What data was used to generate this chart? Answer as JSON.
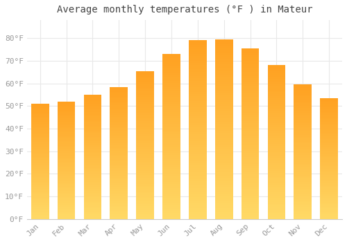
{
  "title": "Average monthly temperatures (°F ) in Mateur",
  "months": [
    "Jan",
    "Feb",
    "Mar",
    "Apr",
    "May",
    "Jun",
    "Jul",
    "Aug",
    "Sep",
    "Oct",
    "Nov",
    "Dec"
  ],
  "values": [
    51,
    52,
    55,
    58.5,
    65.5,
    73,
    79,
    79.5,
    75.5,
    68,
    59.5,
    53.5
  ],
  "ylim": [
    0,
    88
  ],
  "yticks": [
    0,
    10,
    20,
    30,
    40,
    50,
    60,
    70,
    80
  ],
  "ytick_labels": [
    "0°F",
    "10°F",
    "20°F",
    "30°F",
    "40°F",
    "50°F",
    "60°F",
    "70°F",
    "80°F"
  ],
  "background_color": "#FFFFFF",
  "grid_color": "#E8E8E8",
  "title_fontsize": 10,
  "tick_fontsize": 8,
  "bar_width": 0.68,
  "bar_color_bottom": "#FFD966",
  "bar_color_top": "#FFA020",
  "gradient_steps": 80
}
